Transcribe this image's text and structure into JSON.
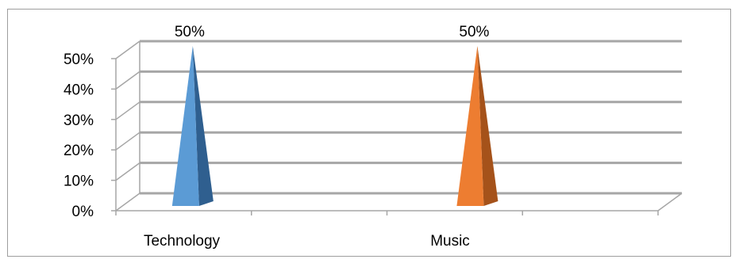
{
  "chart_data": {
    "type": "bar",
    "style": "3d-pyramid",
    "categories": [
      "Technology",
      "Music"
    ],
    "values": [
      50,
      50
    ],
    "data_labels": [
      "50%",
      "50%"
    ],
    "y_ticks": [
      "0%",
      "10%",
      "20%",
      "30%",
      "40%",
      "50%"
    ],
    "ylim": [
      0,
      50
    ],
    "grid": true,
    "legend": "none",
    "title": "",
    "xlabel": "",
    "ylabel": "",
    "colors": {
      "Technology": "#5b9bd5",
      "Technology_shade": "#2f5f8f",
      "Music": "#ed7d31",
      "Music_shade": "#a5521a",
      "grid": "#a6a6a6"
    }
  }
}
